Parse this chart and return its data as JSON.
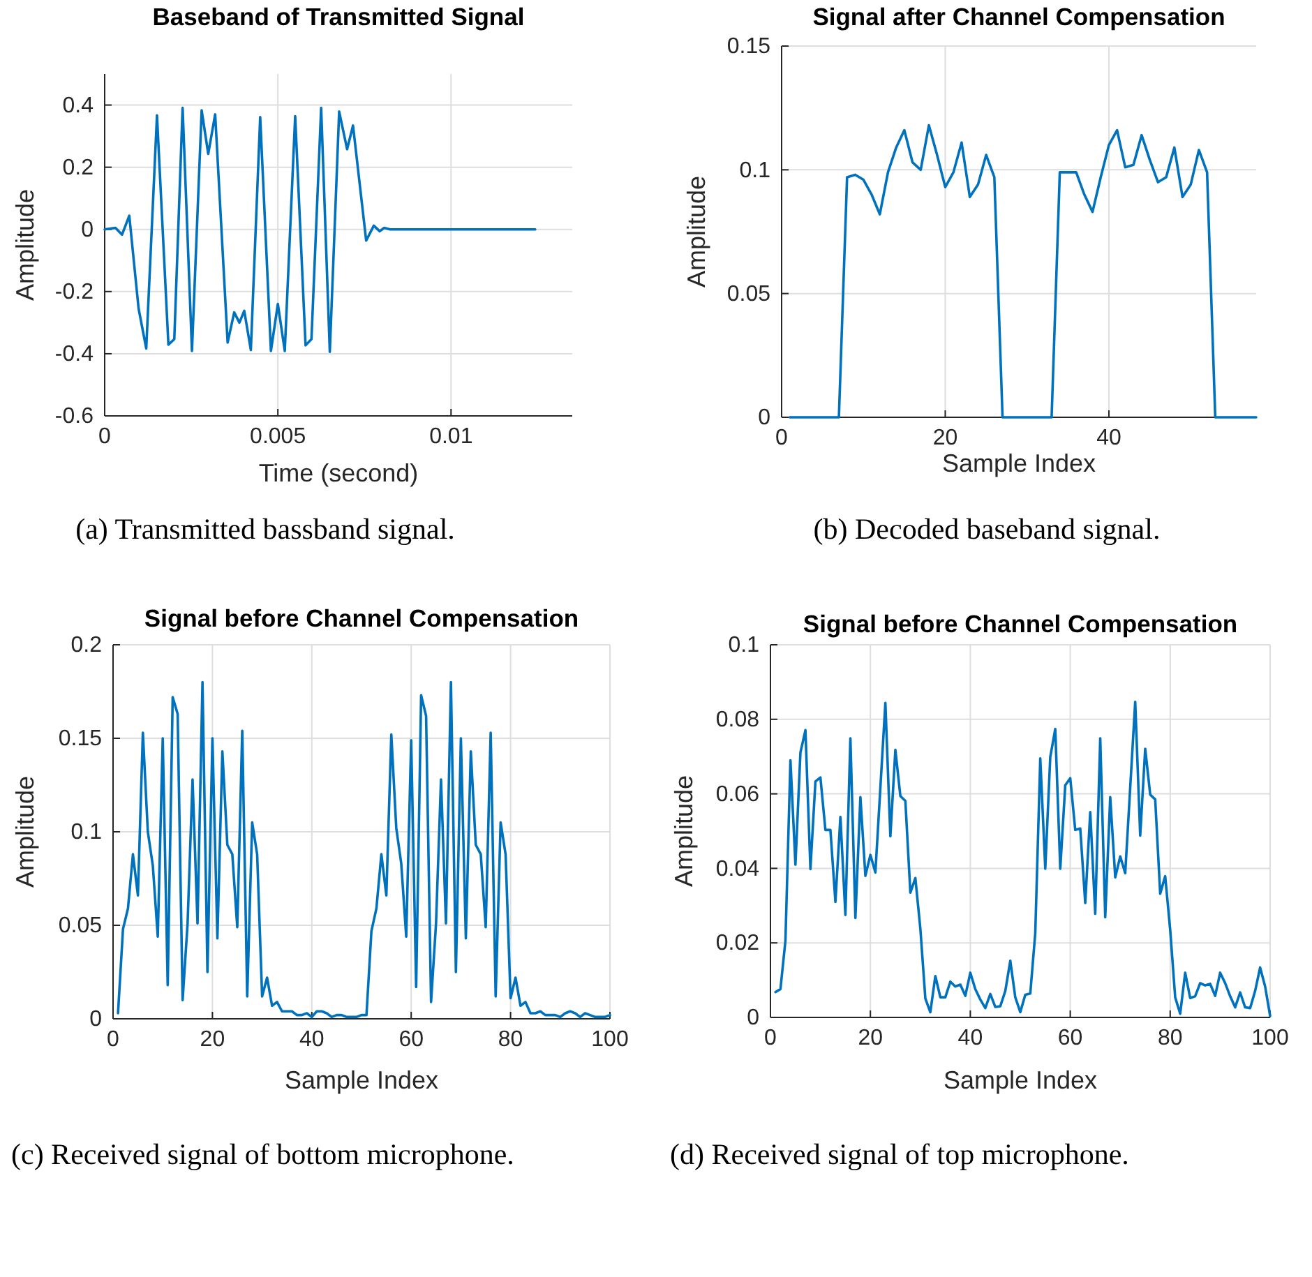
{
  "chart_data": [
    {
      "type": "line",
      "title": "Baseband of Transmitted Signal",
      "xlabel": "Time (second)",
      "ylabel": "Amplitude",
      "annotations": [
        "(a) Transmitted bassband signal."
      ],
      "grid": true,
      "xlim": [
        0,
        0.0135
      ],
      "xticks": [
        0,
        0.005,
        0.01
      ],
      "ylim": [
        -0.6,
        0.5
      ],
      "yticks": [
        -0.6,
        -0.4,
        -0.2,
        0,
        0.2,
        0.4
      ],
      "series": [
        {
          "color": "#0072bd",
          "x": [
            0,
            0.00031,
            0.0005,
            0.00071,
            0.00098,
            0.0012,
            0.00151,
            0.00184,
            0.00201,
            0.00225,
            0.00252,
            0.0028,
            0.00299,
            0.00319,
            0.00355,
            0.00374,
            0.00389,
            0.00403,
            0.00422,
            0.00449,
            0.0048,
            0.005,
            0.0052,
            0.0055,
            0.0058,
            0.00597,
            0.00625,
            0.0065,
            0.00677,
            0.007,
            0.00717,
            0.00755,
            0.00777,
            0.00794,
            0.00807,
            0.00824,
            0.01243
          ],
          "values": [
            0,
            0.005,
            -0.017,
            0.044,
            -0.255,
            -0.383,
            0.367,
            -0.371,
            -0.353,
            0.391,
            -0.391,
            0.383,
            0.243,
            0.37,
            -0.364,
            -0.267,
            -0.3,
            -0.262,
            -0.388,
            0.361,
            -0.391,
            -0.24,
            -0.391,
            0.364,
            -0.373,
            -0.353,
            0.391,
            -0.394,
            0.379,
            0.258,
            0.334,
            -0.036,
            0.012,
            -0.006,
            0.005,
            0,
            0
          ]
        }
      ]
    },
    {
      "type": "line",
      "title": "Signal after Channel Compensation",
      "xlabel": "Sample Index",
      "ylabel": "Amplitude",
      "annotations": [
        "(b) Decoded baseband signal."
      ],
      "grid": true,
      "xlim": [
        0,
        58
      ],
      "xticks": [
        0,
        20,
        40
      ],
      "ylim": [
        0,
        0.15
      ],
      "yticks": [
        0,
        0.05,
        0.1,
        0.15
      ],
      "series": [
        {
          "color": "#0072bd",
          "x": [
            1,
            2,
            3,
            4,
            5,
            6,
            7,
            8,
            9,
            10,
            11,
            12,
            13,
            14,
            15,
            16,
            17,
            18,
            19,
            20,
            21,
            22,
            23,
            24,
            25,
            26,
            27,
            28,
            29,
            30,
            31,
            32,
            33,
            34,
            35,
            36,
            37,
            38,
            39,
            40,
            41,
            42,
            43,
            44,
            45,
            46,
            47,
            48,
            49,
            50,
            51,
            52,
            53,
            54,
            55,
            56,
            57,
            58
          ],
          "values": [
            0,
            0,
            0,
            0,
            0,
            0,
            0,
            0.097,
            0.098,
            0.096,
            0.09,
            0.082,
            0.099,
            0.109,
            0.116,
            0.103,
            0.1,
            0.118,
            0.106,
            0.093,
            0.099,
            0.111,
            0.089,
            0.094,
            0.106,
            0.097,
            0,
            0,
            0,
            0,
            0,
            0,
            0,
            0.099,
            0.099,
            0.099,
            0.09,
            0.083,
            0.097,
            0.11,
            0.116,
            0.101,
            0.102,
            0.114,
            0.104,
            0.095,
            0.097,
            0.109,
            0.089,
            0.094,
            0.108,
            0.099,
            0,
            0,
            0,
            0,
            0,
            0
          ]
        }
      ]
    },
    {
      "type": "line",
      "title": "Signal before Channel Compensation",
      "xlabel": "Sample Index",
      "ylabel": "Amplitude",
      "annotations": [
        "(c) Received signal of bottom microphone."
      ],
      "grid": true,
      "xlim": [
        0,
        100
      ],
      "xticks": [
        0,
        20,
        40,
        60,
        80,
        100
      ],
      "ylim": [
        0,
        0.2
      ],
      "yticks": [
        0,
        0.05,
        0.1,
        0.15,
        0.2
      ],
      "series": [
        {
          "color": "#0072bd",
          "x": [
            1,
            2,
            3,
            4,
            5,
            6,
            7,
            8,
            9,
            10,
            11,
            12,
            13,
            14,
            15,
            16,
            17,
            18,
            19,
            20,
            21,
            22,
            23,
            24,
            25,
            26,
            27,
            28,
            29,
            30,
            31,
            32,
            33,
            34,
            35,
            36,
            37,
            38,
            39,
            40,
            41,
            42,
            43,
            44,
            45,
            46,
            47,
            48,
            49,
            50,
            51,
            52,
            53,
            54,
            55,
            56,
            57,
            58,
            59,
            60,
            61,
            62,
            63,
            64,
            65,
            66,
            67,
            68,
            69,
            70,
            71,
            72,
            73,
            74,
            75,
            76,
            77,
            78,
            79,
            80,
            81,
            82,
            83,
            84,
            85,
            86,
            87,
            88,
            89,
            90,
            91,
            92,
            93,
            94,
            95,
            96,
            97,
            98,
            99,
            100
          ],
          "values": [
            0.003,
            0.048,
            0.059,
            0.088,
            0.066,
            0.153,
            0.1,
            0.082,
            0.044,
            0.15,
            0.018,
            0.172,
            0.163,
            0.01,
            0.051,
            0.128,
            0.051,
            0.18,
            0.025,
            0.15,
            0.043,
            0.143,
            0.093,
            0.088,
            0.049,
            0.154,
            0.012,
            0.105,
            0.088,
            0.012,
            0.022,
            0.007,
            0.009,
            0.004,
            0.004,
            0.004,
            0.002,
            0.002,
            0.003,
            0.001,
            0.004,
            0.004,
            0.003,
            0.001,
            0.002,
            0.002,
            0.001,
            0.001,
            0.001,
            0.002,
            0.002,
            0.047,
            0.059,
            0.088,
            0.066,
            0.152,
            0.102,
            0.083,
            0.044,
            0.149,
            0.017,
            0.173,
            0.162,
            0.009,
            0.051,
            0.128,
            0.051,
            0.18,
            0.025,
            0.15,
            0.043,
            0.143,
            0.093,
            0.088,
            0.049,
            0.153,
            0.012,
            0.105,
            0.088,
            0.011,
            0.022,
            0.007,
            0.009,
            0.003,
            0.003,
            0.004,
            0.002,
            0.002,
            0.002,
            0.001,
            0.003,
            0.004,
            0.003,
            0.001,
            0.003,
            0.002,
            0.001,
            0.001,
            0.001,
            0.002
          ]
        }
      ]
    },
    {
      "type": "line",
      "title": "Signal before Channel Compensation",
      "xlabel": "Sample Index",
      "ylabel": "Amplitude",
      "annotations": [
        "(d) Received signal of top microphone."
      ],
      "grid": true,
      "xlim": [
        0,
        100
      ],
      "xticks": [
        0,
        20,
        40,
        60,
        80,
        100
      ],
      "ylim": [
        0,
        0.1
      ],
      "yticks": [
        0,
        0.02,
        0.04,
        0.06,
        0.08,
        0.1
      ],
      "series": [
        {
          "color": "#0072bd",
          "x": [
            1,
            2,
            3,
            4,
            5,
            6,
            7,
            8,
            9,
            10,
            11,
            12,
            13,
            14,
            15,
            16,
            17,
            18,
            19,
            20,
            21,
            22,
            23,
            24,
            25,
            26,
            27,
            28,
            29,
            30,
            31,
            32,
            33,
            34,
            35,
            36,
            37,
            38,
            39,
            40,
            41,
            42,
            43,
            44,
            45,
            46,
            47,
            48,
            49,
            50,
            51,
            52,
            53,
            54,
            55,
            56,
            57,
            58,
            59,
            60,
            61,
            62,
            63,
            64,
            65,
            66,
            67,
            68,
            69,
            70,
            71,
            72,
            73,
            74,
            75,
            76,
            77,
            78,
            79,
            80,
            81,
            82,
            83,
            84,
            85,
            86,
            87,
            88,
            89,
            90,
            91,
            92,
            93,
            94,
            95,
            96,
            97,
            98,
            99,
            100
          ],
          "values": [
            0.0068,
            0.0076,
            0.0206,
            0.069,
            0.041,
            0.0711,
            0.0771,
            0.0398,
            0.0633,
            0.0644,
            0.0503,
            0.0503,
            0.031,
            0.0538,
            0.0275,
            0.0749,
            0.0267,
            0.0591,
            0.038,
            0.0436,
            0.0389,
            0.0617,
            0.0844,
            0.0486,
            0.0718,
            0.0594,
            0.0581,
            0.0335,
            0.0374,
            0.0238,
            0.0051,
            0.0014,
            0.0111,
            0.0054,
            0.0054,
            0.0096,
            0.0083,
            0.0088,
            0.0058,
            0.012,
            0.0076,
            0.0048,
            0.0025,
            0.0063,
            0.0028,
            0.003,
            0.0071,
            0.0152,
            0.0054,
            0.0014,
            0.0061,
            0.0064,
            0.0227,
            0.0695,
            0.0399,
            0.0699,
            0.0774,
            0.0399,
            0.0623,
            0.0642,
            0.0503,
            0.0507,
            0.0307,
            0.0551,
            0.0278,
            0.0749,
            0.0269,
            0.0591,
            0.0376,
            0.0432,
            0.0387,
            0.0617,
            0.0847,
            0.0488,
            0.0721,
            0.0598,
            0.0585,
            0.0332,
            0.0379,
            0.0235,
            0.0054,
            0.001,
            0.012,
            0.0052,
            0.0057,
            0.0092,
            0.0086,
            0.009,
            0.0058,
            0.012,
            0.0092,
            0.0057,
            0.0027,
            0.0067,
            0.0027,
            0.0025,
            0.0071,
            0.0134,
            0.0083,
            0.0004
          ]
        }
      ]
    }
  ]
}
